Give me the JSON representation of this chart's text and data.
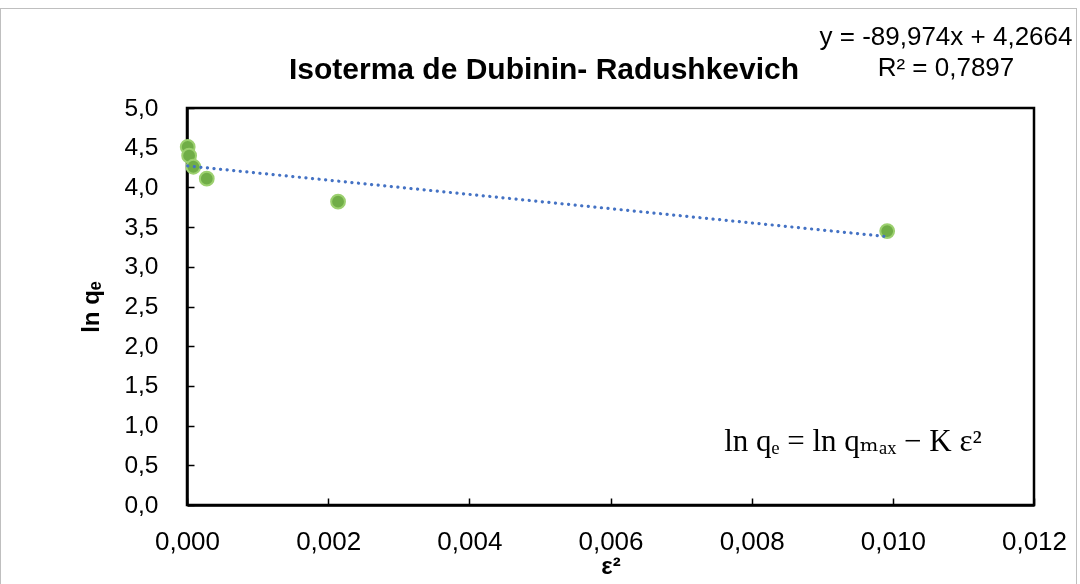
{
  "chart_data": {
    "type": "scatter",
    "title": "Isoterma de Dubinin- Radushkevich",
    "xlabel": "ε²",
    "ylabel": "ln qₑ",
    "annotations": [
      "y = -89,974x + 4,2664",
      "R² = 0,7897",
      "ln qₑ = ln qₘₐₓ − K ε²"
    ],
    "series": [
      {
        "type": "scatter",
        "color": "#70ad47",
        "marker": "circle",
        "x": [
          1e-05,
          3e-05,
          9e-05,
          0.00028,
          0.00214,
          0.00992
        ],
        "values": [
          4.51,
          4.4,
          4.26,
          4.11,
          3.82,
          3.45
        ]
      },
      {
        "type": "line",
        "color": "#4472c4",
        "line_style": "dotted",
        "x": [
          1e-05,
          0.00992
        ],
        "values": [
          4.27,
          3.38
        ]
      }
    ],
    "xlim": [
      0,
      0.012
    ],
    "xticks": [
      {
        "value": 0,
        "label": "0,000"
      },
      {
        "value": 0.002,
        "label": "0,002"
      },
      {
        "value": 0.004,
        "label": "0,004"
      },
      {
        "value": 0.006,
        "label": "0,006"
      },
      {
        "value": 0.008,
        "label": "0,008"
      },
      {
        "value": 0.01,
        "label": "0,010"
      },
      {
        "value": 0.012,
        "label": "0,012"
      }
    ],
    "ylim": [
      0,
      5
    ],
    "yticks": [
      {
        "value": 0,
        "label": "0,0"
      },
      {
        "value": 0.5,
        "label": "0,5"
      },
      {
        "value": 1,
        "label": "1,0"
      },
      {
        "value": 1.5,
        "label": "1,5"
      },
      {
        "value": 2,
        "label": "2,0"
      },
      {
        "value": 2.5,
        "label": "2,5"
      },
      {
        "value": 3,
        "label": "3,0"
      },
      {
        "value": 3.5,
        "label": "3,5"
      },
      {
        "value": 4,
        "label": "4,0"
      },
      {
        "value": 4.5,
        "label": "4,5"
      },
      {
        "value": 5,
        "label": "5,0"
      }
    ]
  }
}
